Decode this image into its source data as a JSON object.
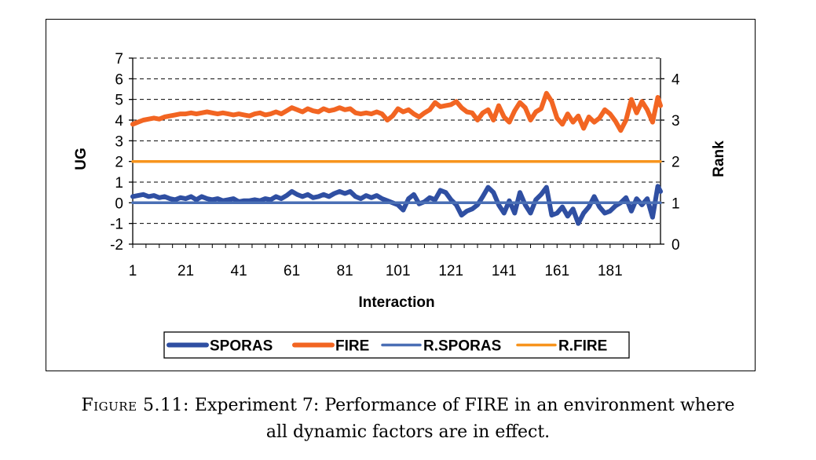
{
  "chart_data": {
    "type": "line",
    "xlabel": "Interaction",
    "ylabel": "UG",
    "y2label": "Rank",
    "xlim": [
      1,
      200
    ],
    "ylim": [
      -2,
      7
    ],
    "y2lim": [
      0,
      4.5
    ],
    "xticks": [
      1,
      21,
      41,
      61,
      81,
      101,
      121,
      141,
      161,
      181
    ],
    "yticks": [
      -2,
      -1,
      0,
      1,
      2,
      3,
      4,
      5,
      6,
      7
    ],
    "y2ticks": [
      0,
      1,
      2,
      3,
      4
    ],
    "grid": "horizontal-dashed",
    "legend_position": "bottom",
    "series": [
      {
        "name": "SPORAS",
        "axis": "left",
        "color": "#2f4fa2",
        "width": 6,
        "points": [
          [
            1,
            0.3
          ],
          [
            3,
            0.35
          ],
          [
            5,
            0.4
          ],
          [
            7,
            0.3
          ],
          [
            9,
            0.35
          ],
          [
            11,
            0.25
          ],
          [
            13,
            0.3
          ],
          [
            15,
            0.2
          ],
          [
            17,
            0.15
          ],
          [
            19,
            0.25
          ],
          [
            21,
            0.2
          ],
          [
            23,
            0.3
          ],
          [
            25,
            0.15
          ],
          [
            27,
            0.3
          ],
          [
            29,
            0.2
          ],
          [
            31,
            0.15
          ],
          [
            33,
            0.2
          ],
          [
            35,
            0.1
          ],
          [
            37,
            0.15
          ],
          [
            39,
            0.2
          ],
          [
            41,
            0.05
          ],
          [
            43,
            0.1
          ],
          [
            45,
            0.1
          ],
          [
            47,
            0.15
          ],
          [
            49,
            0.1
          ],
          [
            51,
            0.2
          ],
          [
            53,
            0.15
          ],
          [
            55,
            0.3
          ],
          [
            57,
            0.2
          ],
          [
            59,
            0.35
          ],
          [
            61,
            0.55
          ],
          [
            63,
            0.4
          ],
          [
            65,
            0.3
          ],
          [
            67,
            0.4
          ],
          [
            69,
            0.25
          ],
          [
            71,
            0.3
          ],
          [
            73,
            0.4
          ],
          [
            75,
            0.3
          ],
          [
            77,
            0.45
          ],
          [
            79,
            0.55
          ],
          [
            81,
            0.45
          ],
          [
            83,
            0.55
          ],
          [
            85,
            0.3
          ],
          [
            87,
            0.2
          ],
          [
            89,
            0.35
          ],
          [
            91,
            0.25
          ],
          [
            93,
            0.35
          ],
          [
            95,
            0.2
          ],
          [
            97,
            0.1
          ],
          [
            99,
            0.0
          ],
          [
            101,
            -0.1
          ],
          [
            103,
            -0.35
          ],
          [
            105,
            0.2
          ],
          [
            107,
            0.4
          ],
          [
            109,
            -0.05
          ],
          [
            111,
            0.05
          ],
          [
            113,
            0.25
          ],
          [
            115,
            0.15
          ],
          [
            117,
            0.6
          ],
          [
            119,
            0.5
          ],
          [
            121,
            0.15
          ],
          [
            123,
            -0.1
          ],
          [
            125,
            -0.6
          ],
          [
            127,
            -0.4
          ],
          [
            129,
            -0.3
          ],
          [
            131,
            -0.1
          ],
          [
            133,
            0.3
          ],
          [
            135,
            0.75
          ],
          [
            137,
            0.5
          ],
          [
            139,
            -0.1
          ],
          [
            141,
            -0.5
          ],
          [
            143,
            0.1
          ],
          [
            145,
            -0.5
          ],
          [
            147,
            0.5
          ],
          [
            149,
            -0.1
          ],
          [
            151,
            -0.5
          ],
          [
            153,
            0.15
          ],
          [
            155,
            0.4
          ],
          [
            157,
            0.75
          ],
          [
            159,
            -0.6
          ],
          [
            161,
            -0.5
          ],
          [
            163,
            -0.2
          ],
          [
            165,
            -0.65
          ],
          [
            167,
            -0.3
          ],
          [
            169,
            -1.0
          ],
          [
            171,
            -0.5
          ],
          [
            173,
            -0.2
          ],
          [
            175,
            0.3
          ],
          [
            177,
            -0.2
          ],
          [
            179,
            -0.5
          ],
          [
            181,
            -0.4
          ],
          [
            183,
            -0.15
          ],
          [
            185,
            0.0
          ],
          [
            187,
            0.25
          ],
          [
            189,
            -0.4
          ],
          [
            191,
            0.2
          ],
          [
            193,
            -0.1
          ],
          [
            195,
            0.2
          ],
          [
            197,
            -0.7
          ],
          [
            199,
            0.8
          ],
          [
            200,
            0.55
          ]
        ]
      },
      {
        "name": "FIRE",
        "axis": "left",
        "color": "#f26522",
        "width": 6,
        "points": [
          [
            1,
            3.8
          ],
          [
            3,
            3.9
          ],
          [
            5,
            4.0
          ],
          [
            7,
            4.05
          ],
          [
            9,
            4.1
          ],
          [
            11,
            4.05
          ],
          [
            13,
            4.15
          ],
          [
            15,
            4.2
          ],
          [
            17,
            4.25
          ],
          [
            19,
            4.3
          ],
          [
            21,
            4.3
          ],
          [
            23,
            4.35
          ],
          [
            25,
            4.3
          ],
          [
            27,
            4.35
          ],
          [
            29,
            4.4
          ],
          [
            31,
            4.35
          ],
          [
            33,
            4.3
          ],
          [
            35,
            4.35
          ],
          [
            37,
            4.3
          ],
          [
            39,
            4.25
          ],
          [
            41,
            4.3
          ],
          [
            43,
            4.25
          ],
          [
            45,
            4.2
          ],
          [
            47,
            4.3
          ],
          [
            49,
            4.35
          ],
          [
            51,
            4.25
          ],
          [
            53,
            4.3
          ],
          [
            55,
            4.4
          ],
          [
            57,
            4.3
          ],
          [
            59,
            4.45
          ],
          [
            61,
            4.6
          ],
          [
            63,
            4.5
          ],
          [
            65,
            4.4
          ],
          [
            67,
            4.55
          ],
          [
            69,
            4.45
          ],
          [
            71,
            4.4
          ],
          [
            73,
            4.55
          ],
          [
            75,
            4.45
          ],
          [
            77,
            4.5
          ],
          [
            79,
            4.6
          ],
          [
            81,
            4.5
          ],
          [
            83,
            4.55
          ],
          [
            85,
            4.35
          ],
          [
            87,
            4.3
          ],
          [
            89,
            4.35
          ],
          [
            91,
            4.3
          ],
          [
            93,
            4.4
          ],
          [
            95,
            4.3
          ],
          [
            97,
            4.0
          ],
          [
            99,
            4.2
          ],
          [
            101,
            4.55
          ],
          [
            103,
            4.4
          ],
          [
            105,
            4.5
          ],
          [
            107,
            4.3
          ],
          [
            109,
            4.15
          ],
          [
            111,
            4.35
          ],
          [
            113,
            4.5
          ],
          [
            115,
            4.85
          ],
          [
            117,
            4.65
          ],
          [
            119,
            4.7
          ],
          [
            121,
            4.75
          ],
          [
            123,
            4.9
          ],
          [
            125,
            4.6
          ],
          [
            127,
            4.4
          ],
          [
            129,
            4.35
          ],
          [
            131,
            4.0
          ],
          [
            133,
            4.35
          ],
          [
            135,
            4.5
          ],
          [
            137,
            4.0
          ],
          [
            139,
            4.7
          ],
          [
            141,
            4.15
          ],
          [
            143,
            3.9
          ],
          [
            145,
            4.45
          ],
          [
            147,
            4.85
          ],
          [
            149,
            4.6
          ],
          [
            151,
            4.0
          ],
          [
            153,
            4.4
          ],
          [
            155,
            4.55
          ],
          [
            157,
            5.3
          ],
          [
            159,
            4.9
          ],
          [
            161,
            4.1
          ],
          [
            163,
            3.8
          ],
          [
            165,
            4.3
          ],
          [
            167,
            3.9
          ],
          [
            169,
            4.2
          ],
          [
            171,
            3.6
          ],
          [
            173,
            4.15
          ],
          [
            175,
            3.9
          ],
          [
            177,
            4.1
          ],
          [
            179,
            4.5
          ],
          [
            181,
            4.3
          ],
          [
            183,
            3.95
          ],
          [
            185,
            3.5
          ],
          [
            187,
            4.0
          ],
          [
            189,
            5.0
          ],
          [
            191,
            4.35
          ],
          [
            193,
            4.9
          ],
          [
            195,
            4.5
          ],
          [
            197,
            3.9
          ],
          [
            199,
            5.1
          ],
          [
            200,
            4.7
          ]
        ]
      },
      {
        "name": "R.SPORAS",
        "axis": "right",
        "color": "#4a6fb5",
        "width": 3.5,
        "points": [
          [
            1,
            1
          ],
          [
            200,
            1
          ]
        ]
      },
      {
        "name": "R.FIRE",
        "axis": "right",
        "color": "#f7941d",
        "width": 3.5,
        "points": [
          [
            1,
            2
          ],
          [
            200,
            2
          ]
        ]
      }
    ]
  },
  "caption": {
    "label": "Figure 5.11:",
    "text_line1": "Experiment 7: Performance of FIRE in an environment where",
    "text_line2": "all dynamic factors are in effect."
  }
}
